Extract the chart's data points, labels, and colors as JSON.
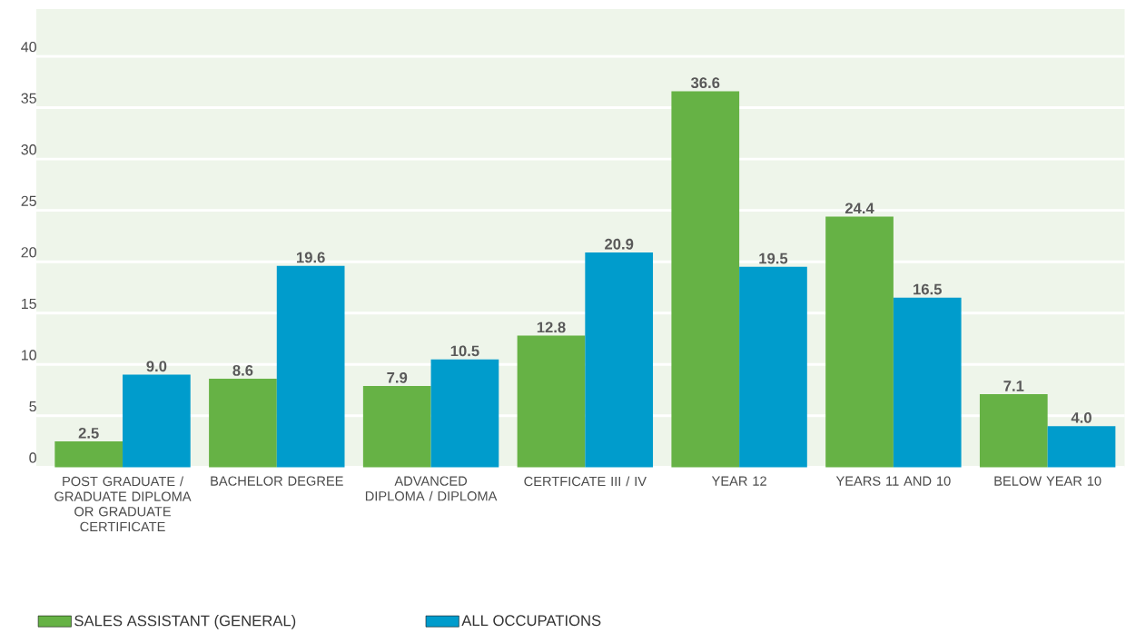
{
  "chart_data": {
    "type": "bar",
    "categories": [
      "POST GRADUATE / GRADUATE DIPLOMA OR GRADUATE CERTIFICATE",
      "BACHELOR DEGREE",
      "ADVANCED DIPLOMA / DIPLOMA",
      "CERTFICATE III / IV",
      "YEAR 12",
      "YEARS 11 AND 10",
      "BELOW YEAR 10"
    ],
    "series": [
      {
        "name": "SALES ASSISTANT (GENERAL)",
        "color": "#66b245",
        "values": [
          2.5,
          8.6,
          7.9,
          12.8,
          36.6,
          24.4,
          7.1
        ],
        "value_labels": [
          "2.5",
          "8.6",
          "7.9",
          "12.8",
          "36.6",
          "24.4",
          "7.1"
        ]
      },
      {
        "name": "ALL OCCUPATIONS",
        "color": "#009ccc",
        "values": [
          9.0,
          19.6,
          10.5,
          20.9,
          19.5,
          16.5,
          4.0
        ],
        "value_labels": [
          "9.0",
          "19.6",
          "10.5",
          "20.9",
          "19.5",
          "16.5",
          "4.0"
        ]
      }
    ],
    "ylim": [
      0,
      44.6
    ],
    "yticks": [
      0,
      5,
      10,
      15,
      20,
      25,
      30,
      35,
      40
    ],
    "grid": "y",
    "legend": "bottom left"
  }
}
